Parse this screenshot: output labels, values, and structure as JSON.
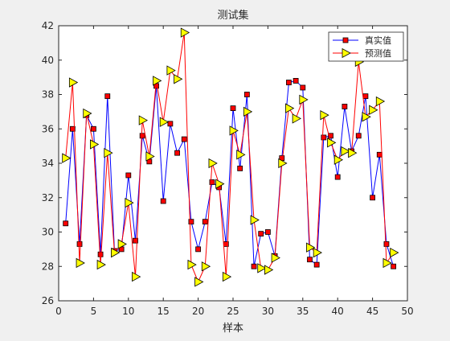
{
  "chart_data": {
    "type": "line",
    "title": "测试集",
    "xlabel": "样本",
    "ylabel": "",
    "xlim": [
      0,
      50
    ],
    "ylim": [
      26,
      42
    ],
    "x_ticks": [
      0,
      5,
      10,
      15,
      20,
      25,
      30,
      35,
      40,
      45,
      50
    ],
    "y_ticks": [
      26,
      28,
      30,
      32,
      34,
      36,
      38,
      40,
      42
    ],
    "grid": false,
    "legend_position": "top-right",
    "x": [
      1,
      2,
      3,
      4,
      5,
      6,
      7,
      8,
      9,
      10,
      11,
      12,
      13,
      14,
      15,
      16,
      17,
      18,
      19,
      20,
      21,
      22,
      23,
      24,
      25,
      26,
      27,
      28,
      29,
      30,
      31,
      32,
      33,
      34,
      35,
      36,
      37,
      38,
      39,
      40,
      41,
      42,
      43,
      44,
      45,
      46,
      47,
      48
    ],
    "series": [
      {
        "name": "真实值",
        "color": "#0000ff",
        "marker": "square",
        "marker_face": "#ff0000",
        "values": [
          30.5,
          36.0,
          29.3,
          36.8,
          36.0,
          28.7,
          37.9,
          28.9,
          29.0,
          33.3,
          29.5,
          35.6,
          34.1,
          38.5,
          31.8,
          36.3,
          34.6,
          35.4,
          30.6,
          29.0,
          30.6,
          32.9,
          32.6,
          29.3,
          37.2,
          33.7,
          38.0,
          28.0,
          29.9,
          30.0,
          28.6,
          34.3,
          38.7,
          38.8,
          38.4,
          28.4,
          28.1,
          35.5,
          35.6,
          33.2,
          37.3,
          34.7,
          35.6,
          37.9,
          32.0,
          34.5,
          29.3,
          28.0
        ]
      },
      {
        "name": "预测值",
        "color": "#ff0000",
        "marker": "triangle-right",
        "marker_face": "#ffff00",
        "values": [
          34.3,
          38.7,
          28.2,
          36.9,
          35.1,
          28.1,
          34.6,
          28.8,
          29.3,
          31.7,
          27.4,
          36.5,
          34.4,
          38.8,
          36.4,
          39.4,
          38.9,
          41.6,
          28.1,
          27.1,
          28.0,
          34.0,
          32.8,
          27.4,
          35.9,
          34.5,
          37.0,
          30.7,
          27.9,
          27.8,
          28.5,
          34.0,
          37.2,
          36.6,
          37.7,
          29.1,
          28.8,
          36.8,
          35.2,
          34.2,
          34.7,
          34.6,
          39.9,
          36.7,
          37.1,
          37.6,
          28.2,
          28.8
        ]
      }
    ]
  }
}
